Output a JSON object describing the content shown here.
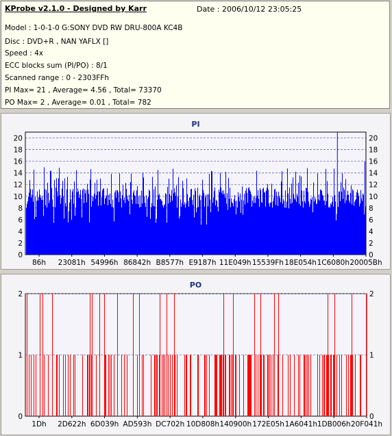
{
  "header": {
    "app_title": "KProbe v2.1.0 - Designed by Karr",
    "date": "Date : 2006/10/12 23:05:25",
    "lines": [
      "Model : 1-0-1-0 G:SONY    DVD RW DRU-800A  KC4B",
      "Disc : DVD+R , NAN YAFLX []",
      "Speed : 4x",
      "ECC blocks sum (PI/PO) : 8/1",
      "Scanned range : 0 - 2303FFh",
      "PI Max= 21 , Average= 4.56 , Total= 73370",
      "PO Max= 2 , Average= 0.01 , Total= 782"
    ]
  },
  "colors": {
    "pi": "#0000ff",
    "po": "#ff0000",
    "background": "#f4f4f6",
    "grid": "#6b6bb5"
  },
  "chart_data": [
    {
      "type": "bar",
      "title": "PI",
      "ylim": [
        0,
        21
      ],
      "yticks": [
        0,
        2,
        4,
        6,
        8,
        10,
        12,
        14,
        16,
        18,
        20
      ],
      "xticks": [
        "86h",
        "23081h",
        "54996h",
        "86842h",
        "B8577h",
        "E9187h",
        "11E049h",
        "15539Fh",
        "18E054h",
        "1C6080h",
        "20005Bh"
      ],
      "grid": "dashed horizontal",
      "series": [
        {
          "color": "#0000ff",
          "average": 4.56,
          "max": 21,
          "typical_range": [
            8,
            15
          ],
          "peaks": [
            {
              "x": "1C6080h",
              "value": 21
            }
          ]
        }
      ]
    },
    {
      "type": "bar",
      "title": "PO",
      "ylim": [
        0,
        2
      ],
      "yticks": [
        0,
        1,
        2
      ],
      "xticks": [
        "1Dh",
        "2D622h",
        "6D039h",
        "AD593h",
        "DC702h",
        "10D808h",
        "140900h",
        "172E05h",
        "1A6041h",
        "1DB006h",
        "20F041h"
      ],
      "grid": "dashed horizontal",
      "series": [
        {
          "color": "#ff0000",
          "average": 0.01,
          "max": 2
        }
      ]
    }
  ]
}
